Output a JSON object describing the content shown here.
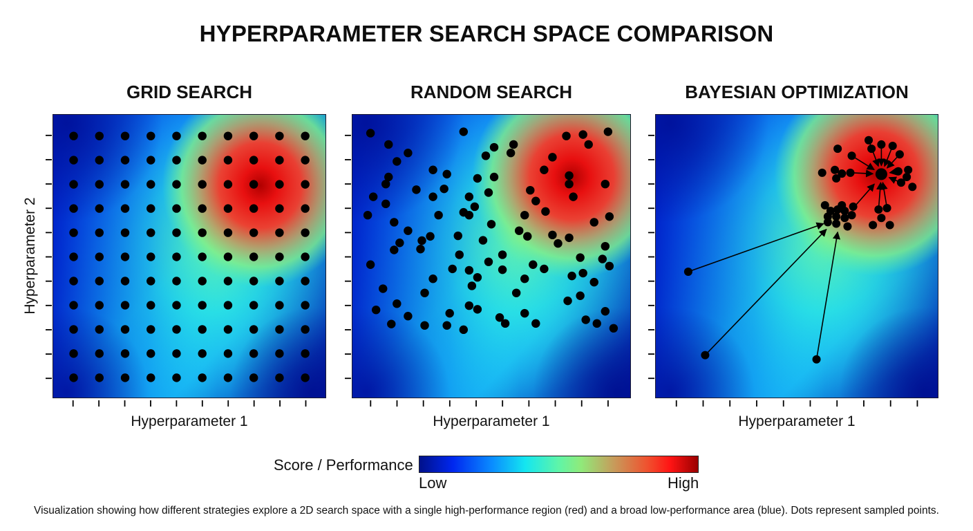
{
  "title": "HYPERPARAMETER SEARCH SPACE COMPARISON",
  "panels": [
    {
      "title": "GRID SEARCH",
      "xlabel": "Hyperparameter 1"
    },
    {
      "title": "RANDOM SEARCH",
      "xlabel": "Hyperparameter 1"
    },
    {
      "title": "BAYESIAN OPTIMIZATION",
      "xlabel": "Hyperparameter 1"
    }
  ],
  "ylabel": "Hyperparameter 2",
  "colorbar": {
    "label": "Score / Performance",
    "low": "Low",
    "high": "High",
    "colors": [
      "#00118a",
      "#0027ef",
      "#0a8cff",
      "#14e6f0",
      "#5ff5a8",
      "#90ea7a",
      "#c89a5a",
      "#f0502e",
      "#ff1414",
      "#9a0000"
    ]
  },
  "caption": "Visualization showing how different strategies explore a 2D search space with a single high-performance region (red) and a broad low-performance area (blue). Dots represent sampled points.",
  "chart_data": [
    {
      "type": "scatter",
      "title": "GRID SEARCH",
      "xlabel": "Hyperparameter 1",
      "ylabel": "Hyperparameter 2",
      "background": "heatmap: single high-performance peak near (0.75, 0.76) in normalized coordinates, low elsewhere",
      "grid": {
        "columns": 10,
        "rows": 11,
        "x_start": 0.075,
        "x_step": 0.0945,
        "y_start": 0.925,
        "y_step": 0.0855
      },
      "points_count": 110
    },
    {
      "type": "scatter",
      "title": "RANDOM SEARCH",
      "xlabel": "Hyperparameter 1",
      "ylabel": "Hyperparameter 2",
      "background": "heatmap: single high-performance peak near (0.79, 0.78)",
      "points": [
        [
          0.065,
          0.935
        ],
        [
          0.4,
          0.94
        ],
        [
          0.77,
          0.925
        ],
        [
          0.83,
          0.93
        ],
        [
          0.92,
          0.94
        ],
        [
          0.13,
          0.895
        ],
        [
          0.51,
          0.885
        ],
        [
          0.58,
          0.895
        ],
        [
          0.85,
          0.895
        ],
        [
          0.2,
          0.865
        ],
        [
          0.48,
          0.855
        ],
        [
          0.57,
          0.865
        ],
        [
          0.72,
          0.85
        ],
        [
          0.16,
          0.835
        ],
        [
          0.29,
          0.805
        ],
        [
          0.69,
          0.805
        ],
        [
          0.34,
          0.79
        ],
        [
          0.13,
          0.78
        ],
        [
          0.45,
          0.775
        ],
        [
          0.51,
          0.78
        ],
        [
          0.78,
          0.785
        ],
        [
          0.78,
          0.755
        ],
        [
          0.12,
          0.755
        ],
        [
          0.23,
          0.735
        ],
        [
          0.33,
          0.738
        ],
        [
          0.91,
          0.755
        ],
        [
          0.64,
          0.733
        ],
        [
          0.075,
          0.71
        ],
        [
          0.29,
          0.71
        ],
        [
          0.42,
          0.71
        ],
        [
          0.49,
          0.725
        ],
        [
          0.66,
          0.695
        ],
        [
          0.795,
          0.71
        ],
        [
          0.12,
          0.685
        ],
        [
          0.44,
          0.675
        ],
        [
          0.925,
          0.64
        ],
        [
          0.055,
          0.645
        ],
        [
          0.4,
          0.655
        ],
        [
          0.42,
          0.645
        ],
        [
          0.15,
          0.62
        ],
        [
          0.31,
          0.645
        ],
        [
          0.62,
          0.645
        ],
        [
          0.695,
          0.658
        ],
        [
          0.87,
          0.62
        ],
        [
          0.5,
          0.613
        ],
        [
          0.2,
          0.59
        ],
        [
          0.6,
          0.59
        ],
        [
          0.72,
          0.575
        ],
        [
          0.63,
          0.57
        ],
        [
          0.28,
          0.57
        ],
        [
          0.38,
          0.572
        ],
        [
          0.25,
          0.555
        ],
        [
          0.17,
          0.547
        ],
        [
          0.47,
          0.556
        ],
        [
          0.78,
          0.565
        ],
        [
          0.91,
          0.535
        ],
        [
          0.15,
          0.522
        ],
        [
          0.245,
          0.525
        ],
        [
          0.385,
          0.505
        ],
        [
          0.54,
          0.505
        ],
        [
          0.74,
          0.545
        ],
        [
          0.82,
          0.495
        ],
        [
          0.9,
          0.49
        ],
        [
          0.065,
          0.47
        ],
        [
          0.49,
          0.48
        ],
        [
          0.65,
          0.47
        ],
        [
          0.36,
          0.455
        ],
        [
          0.42,
          0.45
        ],
        [
          0.54,
          0.452
        ],
        [
          0.69,
          0.455
        ],
        [
          0.925,
          0.465
        ],
        [
          0.45,
          0.425
        ],
        [
          0.29,
          0.42
        ],
        [
          0.62,
          0.42
        ],
        [
          0.79,
          0.43
        ],
        [
          0.83,
          0.44
        ],
        [
          0.11,
          0.385
        ],
        [
          0.43,
          0.395
        ],
        [
          0.87,
          0.408
        ],
        [
          0.26,
          0.37
        ],
        [
          0.59,
          0.37
        ],
        [
          0.82,
          0.36
        ],
        [
          0.775,
          0.342
        ],
        [
          0.42,
          0.325
        ],
        [
          0.45,
          0.312
        ],
        [
          0.16,
          0.332
        ],
        [
          0.085,
          0.31
        ],
        [
          0.35,
          0.298
        ],
        [
          0.62,
          0.298
        ],
        [
          0.91,
          0.305
        ],
        [
          0.53,
          0.283
        ],
        [
          0.14,
          0.26
        ],
        [
          0.26,
          0.255
        ],
        [
          0.34,
          0.255
        ],
        [
          0.4,
          0.24
        ],
        [
          0.55,
          0.262
        ],
        [
          0.66,
          0.262
        ],
        [
          0.84,
          0.275
        ],
        [
          0.88,
          0.262
        ],
        [
          0.94,
          0.245
        ],
        [
          0.2,
          0.288
        ]
      ]
    },
    {
      "type": "scatter",
      "title": "BAYESIAN OPTIMIZATION",
      "xlabel": "Hyperparameter 1",
      "ylabel": "Hyperparameter 2",
      "background": "heatmap: single high-performance peak near (0.74, 0.78)",
      "initial_points": [
        [
          0.115,
          0.445
        ],
        [
          0.175,
          0.15
        ],
        [
          0.57,
          0.135
        ]
      ],
      "mid_cluster_center": [
        0.645,
        0.65
      ],
      "best_point": [
        0.8,
        0.79
      ],
      "arrows": [
        {
          "from": [
            0.115,
            0.445
          ],
          "to": [
            0.595,
            0.615
          ]
        },
        {
          "from": [
            0.175,
            0.15
          ],
          "to": [
            0.605,
            0.595
          ]
        },
        {
          "from": [
            0.57,
            0.135
          ],
          "to": [
            0.645,
            0.585
          ]
        },
        {
          "from": [
            0.7,
            0.67
          ],
          "to": [
            0.775,
            0.755
          ]
        }
      ],
      "points": [
        [
          0.6,
          0.68
        ],
        [
          0.645,
          0.665
        ],
        [
          0.66,
          0.68
        ],
        [
          0.62,
          0.66
        ],
        [
          0.67,
          0.66
        ],
        [
          0.61,
          0.64
        ],
        [
          0.64,
          0.64
        ],
        [
          0.67,
          0.635
        ],
        [
          0.695,
          0.645
        ],
        [
          0.61,
          0.62
        ],
        [
          0.64,
          0.615
        ],
        [
          0.68,
          0.605
        ],
        [
          0.7,
          0.675
        ],
        [
          0.755,
          0.91
        ],
        [
          0.8,
          0.895
        ],
        [
          0.84,
          0.89
        ],
        [
          0.645,
          0.88
        ],
        [
          0.765,
          0.88
        ],
        [
          0.695,
          0.855
        ],
        [
          0.865,
          0.86
        ],
        [
          0.59,
          0.795
        ],
        [
          0.635,
          0.805
        ],
        [
          0.66,
          0.792
        ],
        [
          0.69,
          0.795
        ],
        [
          0.64,
          0.775
        ],
        [
          0.86,
          0.8
        ],
        [
          0.895,
          0.805
        ],
        [
          0.89,
          0.78
        ],
        [
          0.87,
          0.76
        ],
        [
          0.91,
          0.745
        ],
        [
          0.79,
          0.665
        ],
        [
          0.82,
          0.67
        ],
        [
          0.8,
          0.635
        ],
        [
          0.77,
          0.61
        ],
        [
          0.83,
          0.61
        ]
      ]
    }
  ]
}
